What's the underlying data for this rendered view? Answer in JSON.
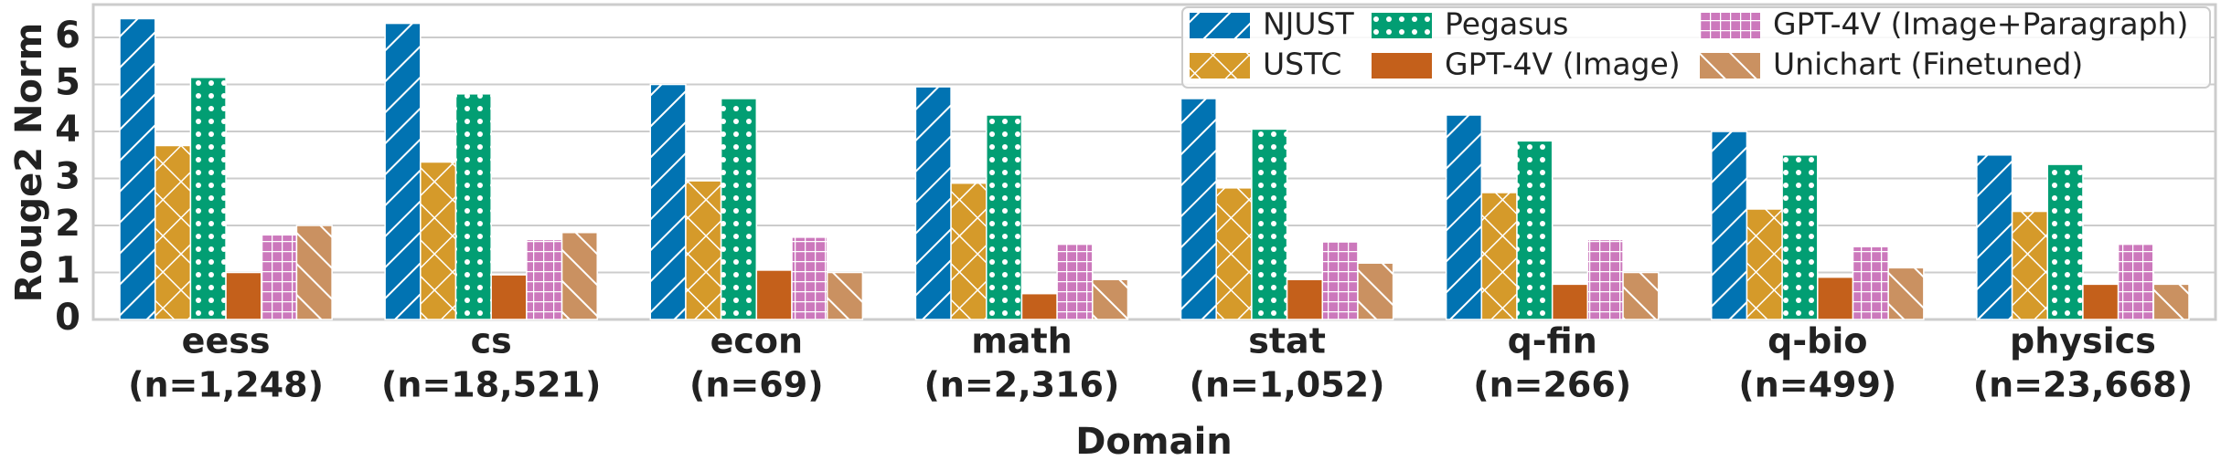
{
  "chart_data": {
    "type": "bar",
    "y_label": "Rouge2 Norm",
    "x_label": "Domain",
    "categories": [
      [
        "eess",
        "(n=1,248)"
      ],
      [
        "cs",
        "(n=18,521)"
      ],
      [
        "econ",
        "(n=69)"
      ],
      [
        "math",
        "(n=2,316)"
      ],
      [
        "stat",
        "(n=1,052)"
      ],
      [
        "q-fin",
        "(n=266)"
      ],
      [
        "q-bio",
        "(n=499)"
      ],
      [
        "physics",
        "(n=23,668)"
      ]
    ],
    "series": [
      {
        "name": "NJUST",
        "color": "#0173b2",
        "hatch": "/",
        "values": [
          6.4,
          6.3,
          5.0,
          4.95,
          4.7,
          4.35,
          4.0,
          3.5
        ]
      },
      {
        "name": "USTC",
        "color": "#d59a2a",
        "hatch": "x",
        "values": [
          3.7,
          3.35,
          2.95,
          2.9,
          2.8,
          2.7,
          2.35,
          2.3
        ]
      },
      {
        "name": "Pegasus",
        "color": "#029e73",
        "hatch": "o",
        "values": [
          5.15,
          4.8,
          4.7,
          4.35,
          4.05,
          3.8,
          3.5,
          3.3
        ]
      },
      {
        "name": "GPT-4V (Image)",
        "color": "#c4601b",
        "values": [
          1.0,
          0.95,
          1.05,
          0.55,
          0.85,
          0.75,
          0.9,
          0.75
        ]
      },
      {
        "name": "GPT-4V (Image+Paragraph)",
        "color": "#cc78bc",
        "hatch": "+",
        "values": [
          1.8,
          1.7,
          1.75,
          1.6,
          1.65,
          1.7,
          1.55,
          1.6
        ]
      },
      {
        "name": "Unichart (Finetuned)",
        "color": "#ca9161",
        "hatch": "\\",
        "values": [
          2.0,
          1.85,
          1.0,
          0.85,
          1.2,
          1.0,
          1.1,
          0.75
        ]
      }
    ],
    "ylim": [
      0,
      6.7
    ],
    "yticks": [
      0,
      1,
      2,
      3,
      4,
      5,
      6
    ],
    "grid": true,
    "legend": "upper right"
  }
}
